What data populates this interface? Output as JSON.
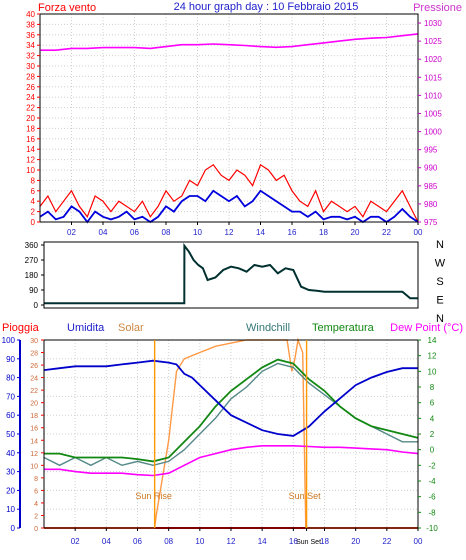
{
  "chart_data": [
    {
      "type": "line",
      "title": "24 hour graph day : 10 Febbraio 2015",
      "left_label": "Forza vento",
      "right_label": "Pressione",
      "x_ticks": [
        "02",
        "04",
        "06",
        "08",
        "10",
        "12",
        "14",
        "16",
        "18",
        "20",
        "22",
        "00"
      ],
      "xlim": [
        0,
        24
      ],
      "y_left_ticks": [
        "0",
        "2",
        "4",
        "6",
        "8",
        "10",
        "12",
        "14",
        "16",
        "18",
        "20",
        "22",
        "24",
        "26",
        "28",
        "30",
        "32",
        "34",
        "36",
        "38",
        "40"
      ],
      "y_right_ticks": [
        "975",
        "980",
        "985",
        "990",
        "995",
        "1000",
        "1005",
        "1010",
        "1015",
        "1020",
        "1025",
        "1030"
      ],
      "ylim_left": [
        0,
        40
      ],
      "ylim_right": [
        975,
        1032.5
      ],
      "grid": true,
      "colors": {
        "gust": "#ff0000",
        "wind": "#0000dd",
        "pressure": "#ff00ff"
      },
      "series": [
        {
          "key": "gust",
          "x": [
            0,
            0.5,
            1,
            1.5,
            2,
            2.5,
            3,
            3.5,
            4,
            4.5,
            5,
            5.5,
            6,
            6.5,
            7,
            7.5,
            8,
            8.5,
            9,
            9.5,
            10,
            10.5,
            11,
            11.5,
            12,
            12.5,
            13,
            13.5,
            14,
            14.5,
            15,
            15.5,
            16,
            16.5,
            17,
            17.5,
            18,
            18.5,
            19,
            19.5,
            20,
            20.5,
            21,
            21.5,
            22,
            22.5,
            23,
            23.5,
            24
          ],
          "y": [
            3,
            5,
            2,
            4,
            6,
            3,
            1,
            5,
            4,
            2,
            4,
            3,
            2,
            4,
            1,
            3,
            6,
            4,
            5,
            8,
            7,
            10,
            11,
            9,
            8,
            10,
            9,
            7,
            11,
            10,
            8,
            9,
            6,
            4,
            3,
            6,
            2,
            4,
            3,
            2,
            3,
            1,
            4,
            3,
            2,
            4,
            6,
            3,
            0
          ]
        },
        {
          "key": "wind",
          "x": [
            0,
            0.5,
            1,
            1.5,
            2,
            2.5,
            3,
            3.5,
            4,
            4.5,
            5,
            5.5,
            6,
            6.5,
            7,
            7.5,
            8,
            8.5,
            9,
            9.5,
            10,
            10.5,
            11,
            11.5,
            12,
            12.5,
            13,
            13.5,
            14,
            14.5,
            15,
            15.5,
            16,
            16.5,
            17,
            17.5,
            18,
            18.5,
            19,
            19.5,
            20,
            20.5,
            21,
            21.5,
            22,
            22.5,
            23,
            23.5,
            24
          ],
          "y": [
            1,
            2,
            0.5,
            1,
            3,
            2,
            0,
            2,
            1,
            0.5,
            1,
            2,
            0.5,
            1,
            0,
            1,
            3,
            2,
            4,
            5,
            5,
            4,
            6,
            5,
            4,
            5,
            3,
            4,
            6,
            5,
            4,
            3,
            2,
            2,
            1,
            2,
            0.5,
            1,
            1,
            0.5,
            1,
            0,
            1,
            1,
            0,
            1,
            2.5,
            1,
            0
          ]
        },
        {
          "key": "pressure",
          "x": [
            0,
            1,
            2,
            3,
            4,
            5,
            6,
            7,
            8,
            9,
            10,
            11,
            12,
            13,
            14,
            15,
            16,
            17,
            18,
            19,
            20,
            21,
            22,
            23,
            24
          ],
          "y": [
            1022.5,
            1022.5,
            1023,
            1023,
            1023.2,
            1023.2,
            1023.2,
            1023,
            1023.5,
            1024,
            1024,
            1024.2,
            1024,
            1023.8,
            1023.5,
            1023.3,
            1023.5,
            1024,
            1024.5,
            1025,
            1025.5,
            1025.8,
            1026,
            1026.5,
            1027
          ]
        }
      ]
    },
    {
      "type": "line",
      "right_labels": [
        "N",
        "W",
        "S",
        "E",
        "N"
      ],
      "y_ticks": [
        "0",
        "90",
        "180",
        "270",
        "360"
      ],
      "ylim": [
        0,
        360
      ],
      "xlim": [
        0,
        24
      ],
      "color": "#003030",
      "series": [
        {
          "key": "direction",
          "x": [
            0,
            2,
            4,
            6,
            8,
            9,
            9.01,
            9.3,
            9.6,
            9.9,
            10.2,
            10.5,
            11,
            11.5,
            12,
            12.5,
            13,
            13.5,
            14,
            14.5,
            15,
            15.5,
            16,
            16.5,
            17,
            17.5,
            18,
            19,
            20,
            21,
            22,
            23,
            23.5,
            24
          ],
          "y": [
            10,
            10,
            10,
            10,
            10,
            10,
            355,
            320,
            270,
            240,
            220,
            150,
            165,
            210,
            230,
            220,
            200,
            240,
            230,
            240,
            190,
            220,
            210,
            110,
            90,
            85,
            80,
            80,
            80,
            80,
            80,
            80,
            40,
            40
          ]
        }
      ]
    },
    {
      "type": "line",
      "labels": {
        "rain": "Pioggia",
        "humidity": "Umidita",
        "solar": "Solar",
        "windchill": "Windchill",
        "temperature": "Temperatura",
        "dewpoint": "Dew Point (°C)"
      },
      "annotations": {
        "sunrise": "Sun Rise",
        "sunset": "Sun Set"
      },
      "x_ticks": [
        "02",
        "04",
        "06",
        "08",
        "10",
        "12",
        "14",
        "16",
        "Sun Set",
        "18",
        "20",
        "22",
        "00"
      ],
      "y_humidity_ticks": [
        "0",
        "10",
        "20",
        "30",
        "40",
        "50",
        "60",
        "70",
        "80",
        "90",
        "100"
      ],
      "y_rain_ticks": [
        "0",
        "2",
        "4",
        "6",
        "8",
        "10",
        "12",
        "14",
        "16",
        "18",
        "20",
        "22",
        "24",
        "26",
        "28",
        "30"
      ],
      "y_temp_ticks": [
        "-10",
        "-8",
        "-6",
        "-4",
        "-2",
        "0",
        "2",
        "4",
        "6",
        "8",
        "10",
        "12",
        "14"
      ],
      "ylim_humidity": [
        0,
        100
      ],
      "ylim_temp": [
        -10,
        14
      ],
      "xlim": [
        0,
        24
      ],
      "grid": true,
      "colors": {
        "rain": "#ff0000",
        "humidity": "#0000cc",
        "solar": "#ff9944",
        "windchill": "#558888",
        "temperature": "#118811",
        "dewpoint": "#ff00ff",
        "sun": "#ff9900"
      },
      "series": [
        {
          "key": "humidity",
          "x": [
            0,
            1,
            2,
            3,
            4,
            5,
            6,
            7,
            8,
            8.5,
            9,
            9.5,
            10,
            11,
            12,
            13,
            14,
            15,
            16,
            17,
            18,
            19,
            20,
            21,
            22,
            23,
            24
          ],
          "y": [
            84,
            85,
            86,
            86,
            86,
            87,
            88,
            89,
            88,
            87,
            82,
            80,
            76,
            68,
            60,
            56,
            52,
            50,
            49,
            54,
            62,
            69,
            76,
            80,
            83,
            85,
            85
          ]
        },
        {
          "key": "temperature",
          "x": [
            0,
            1,
            2,
            3,
            4,
            5,
            6,
            7,
            8,
            9,
            10,
            11,
            12,
            13,
            14,
            15,
            16,
            17,
            18,
            19,
            20,
            21,
            22,
            23,
            24
          ],
          "y": [
            -0.5,
            -0.5,
            -1,
            -1,
            -1,
            -1,
            -1.2,
            -1.5,
            -1,
            1,
            3,
            5.5,
            7.5,
            9,
            10.5,
            11.5,
            11,
            9,
            7.5,
            5.5,
            4,
            3,
            2.5,
            2,
            1.5
          ]
        },
        {
          "key": "windchill",
          "x": [
            0,
            1,
            2,
            3,
            4,
            5,
            6,
            7,
            8,
            9,
            10,
            11,
            12,
            13,
            14,
            15,
            16,
            17,
            18,
            19,
            20,
            21,
            22,
            23,
            24
          ],
          "y": [
            -1,
            -2,
            -1,
            -2,
            -1,
            -2,
            -1.5,
            -2,
            -1.5,
            0,
            2,
            4,
            6.5,
            8,
            10,
            11,
            10.5,
            8.5,
            7,
            5.5,
            4,
            3,
            2,
            1,
            1
          ]
        },
        {
          "key": "dewpoint",
          "x": [
            0,
            1,
            2,
            3,
            4,
            5,
            6,
            7,
            8,
            9,
            10,
            11,
            12,
            13,
            14,
            15,
            16,
            17,
            18,
            19,
            20,
            21,
            22,
            23,
            24
          ],
          "y": [
            -2.5,
            -2.5,
            -2.8,
            -3,
            -3,
            -3,
            -3.2,
            -3.3,
            -3,
            -2,
            -1,
            -0.5,
            0,
            0.3,
            0.5,
            0.5,
            0.5,
            0.4,
            0.3,
            0.3,
            0.2,
            0.1,
            0,
            -0.3,
            -0.5
          ]
        },
        {
          "key": "solar",
          "x": [
            0,
            7.1,
            7.2,
            8.0,
            8.5,
            9,
            10,
            11,
            12,
            13,
            14,
            15,
            15.6,
            15.9,
            16.1,
            16.3,
            16.6,
            16.8,
            16.85,
            24
          ],
          "y": [
            0,
            0,
            2,
            14,
            25,
            27,
            28,
            29,
            29.5,
            30,
            30,
            30,
            30,
            25,
            27,
            30,
            28,
            0,
            0,
            0
          ]
        },
        {
          "key": "rain",
          "x": [
            0,
            24
          ],
          "y": [
            0,
            0
          ]
        }
      ],
      "sunrise_x": 7.1,
      "sunset_x": 16.85
    }
  ]
}
